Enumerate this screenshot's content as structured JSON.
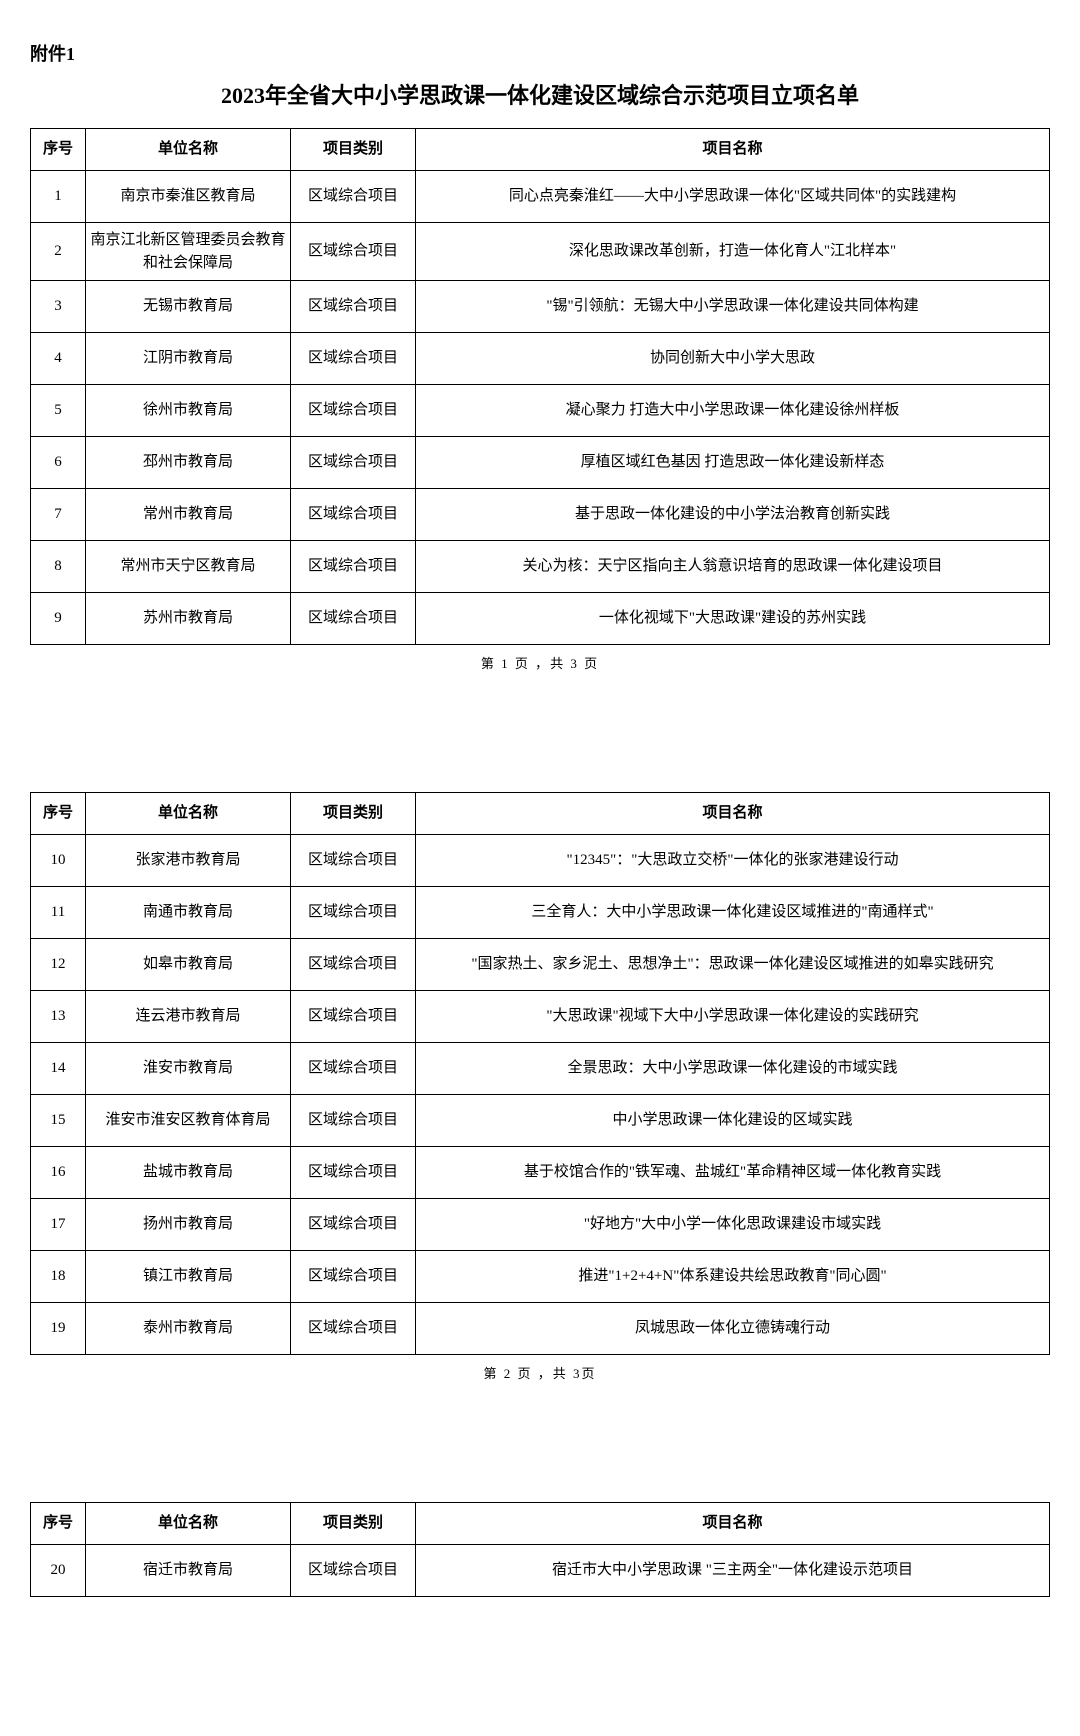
{
  "attachment": "附件1",
  "title": "2023年全省大中小学思政课一体化建设区域综合示范项目立项名单",
  "columns": {
    "idx": "序号",
    "unit": "单位名称",
    "cat": "项目类别",
    "name": "项目名称"
  },
  "pages": [
    {
      "rows": [
        {
          "idx": "1",
          "unit": "南京市秦淮区教育局",
          "cat": "区域综合项目",
          "name": "同心点亮秦淮红——大中小学思政课一体化\"区域共同体\"的实践建构"
        },
        {
          "idx": "2",
          "unit": "南京江北新区管理委员会教育和社会保障局",
          "cat": "区域综合项目",
          "name": "深化思政课改革创新，打造一体化育人\"江北样本\""
        },
        {
          "idx": "3",
          "unit": "无锡市教育局",
          "cat": "区域综合项目",
          "name": "\"锡\"引领航：无锡大中小学思政课一体化建设共同体构建"
        },
        {
          "idx": "4",
          "unit": "江阴市教育局",
          "cat": "区域综合项目",
          "name": "协同创新大中小学大思政"
        },
        {
          "idx": "5",
          "unit": "徐州市教育局",
          "cat": "区域综合项目",
          "name": "凝心聚力 打造大中小学思政课一体化建设徐州样板"
        },
        {
          "idx": "6",
          "unit": "邳州市教育局",
          "cat": "区域综合项目",
          "name": "厚植区域红色基因 打造思政一体化建设新样态"
        },
        {
          "idx": "7",
          "unit": "常州市教育局",
          "cat": "区域综合项目",
          "name": "基于思政一体化建设的中小学法治教育创新实践"
        },
        {
          "idx": "8",
          "unit": "常州市天宁区教育局",
          "cat": "区域综合项目",
          "name": "关心为核：天宁区指向主人翁意识培育的思政课一体化建设项目"
        },
        {
          "idx": "9",
          "unit": "苏州市教育局",
          "cat": "区域综合项目",
          "name": "一体化视域下\"大思政课\"建设的苏州实践"
        }
      ],
      "note": "第 1 页 ，共 3 页"
    },
    {
      "rows": [
        {
          "idx": "10",
          "unit": "张家港市教育局",
          "cat": "区域综合项目",
          "name": "\"12345\"：\"大思政立交桥\"一体化的张家港建设行动"
        },
        {
          "idx": "11",
          "unit": "南通市教育局",
          "cat": "区域综合项目",
          "name": "三全育人：大中小学思政课一体化建设区域推进的\"南通样式\""
        },
        {
          "idx": "12",
          "unit": "如皋市教育局",
          "cat": "区域综合项目",
          "name": "\"国家热土、家乡泥土、思想净土\"：思政课一体化建设区域推进的如皋实践研究"
        },
        {
          "idx": "13",
          "unit": "连云港市教育局",
          "cat": "区域综合项目",
          "name": "\"大思政课\"视域下大中小学思政课一体化建设的实践研究"
        },
        {
          "idx": "14",
          "unit": "淮安市教育局",
          "cat": "区域综合项目",
          "name": "全景思政：大中小学思政课一体化建设的市域实践"
        },
        {
          "idx": "15",
          "unit": "淮安市淮安区教育体育局",
          "cat": "区域综合项目",
          "name": "中小学思政课一体化建设的区域实践"
        },
        {
          "idx": "16",
          "unit": "盐城市教育局",
          "cat": "区域综合项目",
          "name": "基于校馆合作的\"铁军魂、盐城红\"革命精神区域一体化教育实践"
        },
        {
          "idx": "17",
          "unit": "扬州市教育局",
          "cat": "区域综合项目",
          "name": "\"好地方\"大中小学一体化思政课建设市域实践"
        },
        {
          "idx": "18",
          "unit": "镇江市教育局",
          "cat": "区域综合项目",
          "name": "推进\"1+2+4+N\"体系建设共绘思政教育\"同心圆\""
        },
        {
          "idx": "19",
          "unit": "泰州市教育局",
          "cat": "区域综合项目",
          "name": "凤城思政一体化立德铸魂行动"
        }
      ],
      "note": "第 2 页 ，共 3页"
    },
    {
      "rows": [
        {
          "idx": "20",
          "unit": "宿迁市教育局",
          "cat": "区域综合项目",
          "name": "宿迁市大中小学思政课 \"三主两全\"一体化建设示范项目"
        }
      ],
      "note": ""
    }
  ]
}
